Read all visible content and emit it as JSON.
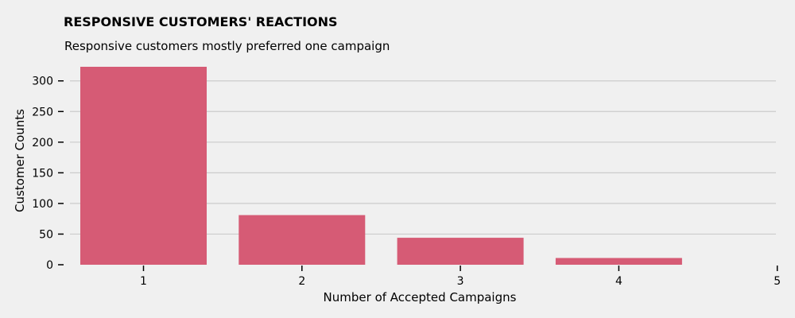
{
  "chart_data": {
    "type": "bar",
    "title": "RESPONSIVE CUSTOMERS' REACTIONS",
    "subtitle": "Responsive customers mostly preferred one campaign",
    "xlabel": "Number of Accepted Campaigns",
    "ylabel": "Customer Counts",
    "categories": [
      "1",
      "2",
      "3",
      "4",
      "5"
    ],
    "values": [
      323,
      81,
      44,
      11,
      0
    ],
    "yticks": [
      0,
      50,
      100,
      150,
      200,
      250,
      300
    ],
    "ylim": [
      0,
      323
    ],
    "grid": "horizontal",
    "colors": {
      "bar": "#d65b75",
      "background": "#f0f0f0",
      "grid": "#cbcbcb"
    }
  }
}
